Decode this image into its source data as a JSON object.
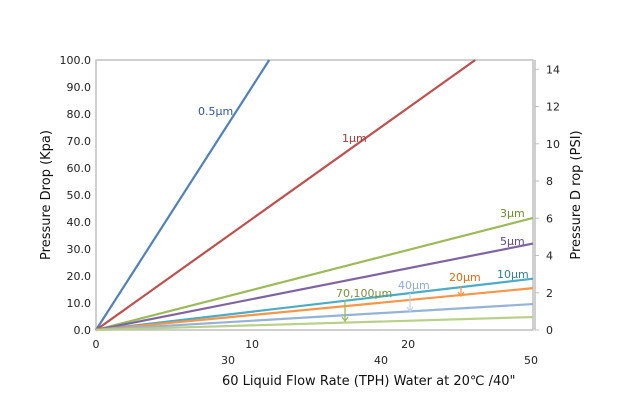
{
  "chart_data": {
    "type": "line",
    "title": "",
    "xlabel": "60 Liquid Flow Rate (TPH) Water at 20℃ /40\"",
    "ylabel": "Pressure  Drop (Kpa)",
    "y2label": "Pressure  D rop (PSI)",
    "xlim": [
      0,
      28
    ],
    "ylim": [
      0,
      100
    ],
    "y2lim": [
      0,
      14.5
    ],
    "grid": false,
    "x_tick_labels_row1": [
      "0",
      "10",
      "20"
    ],
    "x_tick_labels_row2": [
      "30",
      "40",
      "50"
    ],
    "y_ticks": [
      "0.0",
      "10.0",
      "20.0",
      "30.0",
      "40.0",
      "50.0",
      "60.0",
      "70.0",
      "80.0",
      "90.0",
      "100.0"
    ],
    "y2_ticks": [
      "0",
      "2",
      "4",
      "6",
      "8",
      "10",
      "12",
      "14"
    ],
    "series": [
      {
        "name": "0.5μm",
        "color": "#4f81bd",
        "x": [
          0,
          11.1
        ],
        "y": [
          0,
          100
        ]
      },
      {
        "name": "1μm",
        "color": "#c0504d",
        "x": [
          0,
          24.3
        ],
        "y": [
          0,
          100
        ]
      },
      {
        "name": "3μm",
        "color": "#9bbb59",
        "x": [
          0,
          28
        ],
        "y": [
          0,
          41.5
        ]
      },
      {
        "name": "5μm",
        "color": "#8064a2",
        "x": [
          0,
          28
        ],
        "y": [
          0,
          32
        ]
      },
      {
        "name": "10μm",
        "color": "#4bacc6",
        "x": [
          0,
          28
        ],
        "y": [
          0,
          19
        ]
      },
      {
        "name": "20μm",
        "color": "#f79646",
        "x": [
          0,
          28
        ],
        "y": [
          0,
          15.5
        ]
      },
      {
        "name": "40μm",
        "color": "#95b3d7",
        "x": [
          0,
          28
        ],
        "y": [
          0,
          9.6
        ]
      },
      {
        "name": "70,100μm",
        "color": "#b9d08a",
        "x": [
          0,
          28
        ],
        "y": [
          0,
          4.8
        ]
      }
    ],
    "label_colors": {
      "0.5μm": "#2f5597",
      "1μm": "#a33b38",
      "3μm": "#6b8e23",
      "5μm": "#5f4b8b",
      "10μm": "#2f7f9a",
      "20μm": "#e36c0a",
      "40μm": "#8eaadb",
      "70,100μm": "#77933c"
    }
  }
}
